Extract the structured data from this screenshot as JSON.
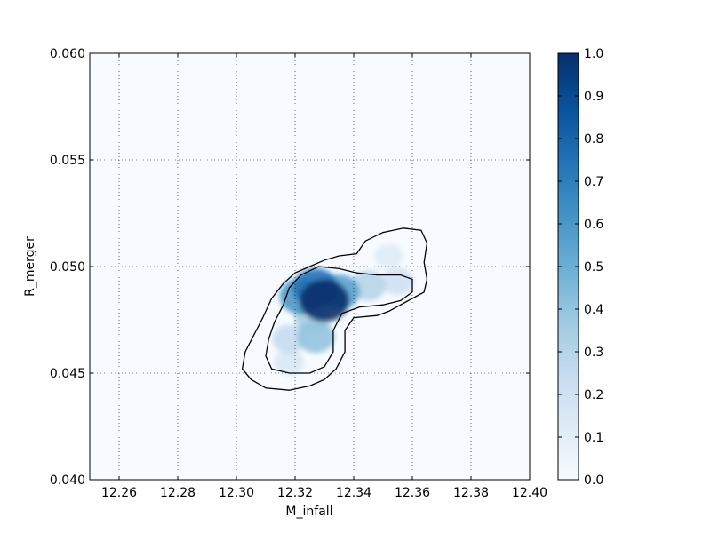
{
  "chart_data": {
    "type": "heatmap",
    "xlabel": "M_infall",
    "ylabel": "R_merger",
    "xlim": [
      12.25,
      12.4
    ],
    "ylim": [
      0.04,
      0.06
    ],
    "xticks": [
      12.26,
      12.28,
      12.3,
      12.32,
      12.34,
      12.36,
      12.38,
      12.4
    ],
    "xtick_labels": [
      "12.26",
      "12.28",
      "12.30",
      "12.32",
      "12.34",
      "12.36",
      "12.38",
      "12.40"
    ],
    "yticks": [
      0.04,
      0.045,
      0.05,
      0.055,
      0.06
    ],
    "ytick_labels": [
      "0.040",
      "0.045",
      "0.050",
      "0.055",
      "0.060"
    ],
    "grid": true,
    "colormap": "Blues",
    "colorbar": {
      "range": [
        0.0,
        1.0
      ],
      "ticks": [
        0.0,
        0.1,
        0.2,
        0.3,
        0.4,
        0.5,
        0.6,
        0.7,
        0.8,
        0.9,
        1.0
      ],
      "tick_labels": [
        "0.0",
        "0.1",
        "0.2",
        "0.3",
        "0.4",
        "0.5",
        "0.6",
        "0.7",
        "0.8",
        "0.9",
        "1.0"
      ]
    },
    "density_peaks": [
      {
        "x": 12.33,
        "y": 0.0484,
        "value": 1.0
      },
      {
        "x": 12.327,
        "y": 0.049,
        "value": 0.75
      },
      {
        "x": 12.322,
        "y": 0.0486,
        "value": 0.6
      },
      {
        "x": 12.335,
        "y": 0.0488,
        "value": 0.55
      },
      {
        "x": 12.326,
        "y": 0.0476,
        "value": 0.35
      },
      {
        "x": 12.327,
        "y": 0.0467,
        "value": 0.4
      },
      {
        "x": 12.318,
        "y": 0.0466,
        "value": 0.25
      },
      {
        "x": 12.345,
        "y": 0.0491,
        "value": 0.3
      },
      {
        "x": 12.355,
        "y": 0.0493,
        "value": 0.2
      },
      {
        "x": 12.352,
        "y": 0.0505,
        "value": 0.12
      },
      {
        "x": 12.318,
        "y": 0.0455,
        "value": 0.15
      }
    ],
    "contours": [
      {
        "level": "outer",
        "points": [
          [
            12.305,
            0.0447
          ],
          [
            12.31,
            0.0443
          ],
          [
            12.318,
            0.0442
          ],
          [
            12.325,
            0.0444
          ],
          [
            12.33,
            0.0447
          ],
          [
            12.334,
            0.0452
          ],
          [
            12.337,
            0.046
          ],
          [
            12.337,
            0.047
          ],
          [
            12.34,
            0.0476
          ],
          [
            12.348,
            0.0477
          ],
          [
            12.352,
            0.0479
          ],
          [
            12.356,
            0.0482
          ],
          [
            12.36,
            0.0485
          ],
          [
            12.364,
            0.0488
          ],
          [
            12.365,
            0.0494
          ],
          [
            12.364,
            0.0502
          ],
          [
            12.365,
            0.0511
          ],
          [
            12.363,
            0.0517
          ],
          [
            12.357,
            0.0518
          ],
          [
            12.35,
            0.0516
          ],
          [
            12.344,
            0.0512
          ],
          [
            12.341,
            0.0506
          ],
          [
            12.335,
            0.0505
          ],
          [
            12.33,
            0.0503
          ],
          [
            12.325,
            0.05
          ],
          [
            12.32,
            0.0497
          ],
          [
            12.316,
            0.0492
          ],
          [
            12.312,
            0.0485
          ],
          [
            12.309,
            0.0476
          ],
          [
            12.306,
            0.0468
          ],
          [
            12.303,
            0.046
          ],
          [
            12.302,
            0.0452
          ],
          [
            12.305,
            0.0447
          ]
        ]
      },
      {
        "level": "inner",
        "points": [
          [
            12.312,
            0.0452
          ],
          [
            12.318,
            0.045
          ],
          [
            12.325,
            0.045
          ],
          [
            12.33,
            0.0453
          ],
          [
            12.333,
            0.046
          ],
          [
            12.333,
            0.047
          ],
          [
            12.336,
            0.0478
          ],
          [
            12.342,
            0.0481
          ],
          [
            12.35,
            0.0482
          ],
          [
            12.356,
            0.0484
          ],
          [
            12.36,
            0.0488
          ],
          [
            12.36,
            0.0494
          ],
          [
            12.356,
            0.0496
          ],
          [
            12.348,
            0.0496
          ],
          [
            12.341,
            0.0497
          ],
          [
            12.335,
            0.0499
          ],
          [
            12.328,
            0.05
          ],
          [
            12.322,
            0.0496
          ],
          [
            12.318,
            0.049
          ],
          [
            12.316,
            0.0482
          ],
          [
            12.313,
            0.0474
          ],
          [
            12.311,
            0.0466
          ],
          [
            12.31,
            0.0458
          ],
          [
            12.312,
            0.0452
          ]
        ]
      }
    ]
  }
}
